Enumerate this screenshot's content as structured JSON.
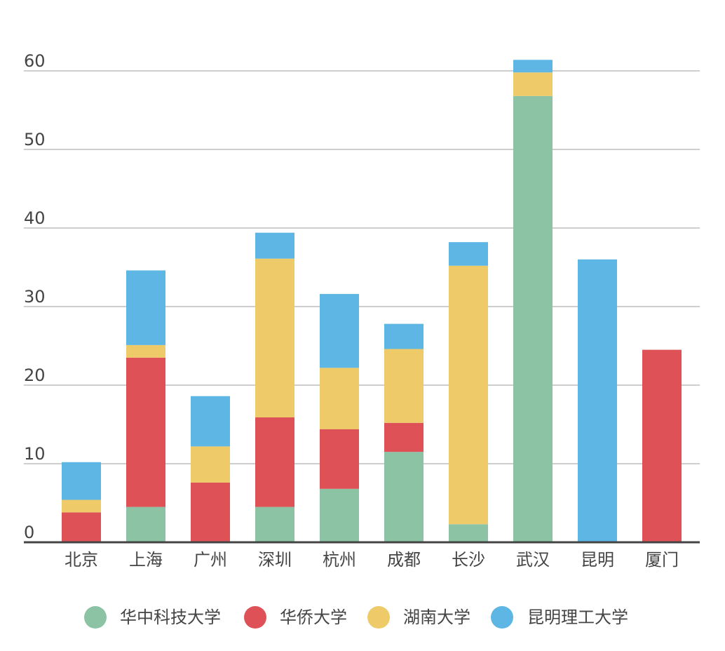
{
  "chart_data": {
    "type": "bar",
    "stacked": true,
    "title": "",
    "xlabel": "",
    "ylabel": "",
    "ylim": [
      0,
      60
    ],
    "yticks": [
      0,
      10,
      20,
      30,
      40,
      50,
      60
    ],
    "grid": true,
    "legend_position": "bottom",
    "categories": [
      "北京",
      "上海",
      "广州",
      "深圳",
      "杭州",
      "成都",
      "长沙",
      "武汉",
      "昆明",
      "厦门"
    ],
    "series": [
      {
        "name": "华中科技大学",
        "color": "#8cc3a5",
        "values": [
          0,
          4.5,
          0,
          4.5,
          6.8,
          11.5,
          2.3,
          56.8,
          0,
          0
        ]
      },
      {
        "name": "华侨大学",
        "color": "#de5257",
        "values": [
          3.8,
          19,
          7.6,
          11.4,
          7.6,
          3.7,
          0,
          0,
          0,
          24.5
        ]
      },
      {
        "name": "湖南大学",
        "color": "#eeca69",
        "values": [
          1.6,
          1.6,
          4.6,
          20.2,
          7.8,
          9.4,
          32.9,
          3.0,
          0,
          0
        ]
      },
      {
        "name": "昆明理工大学",
        "color": "#5db6e4",
        "values": [
          4.8,
          9.5,
          6.4,
          3.3,
          9.4,
          3.2,
          3.0,
          1.6,
          36.0,
          0
        ]
      }
    ]
  }
}
